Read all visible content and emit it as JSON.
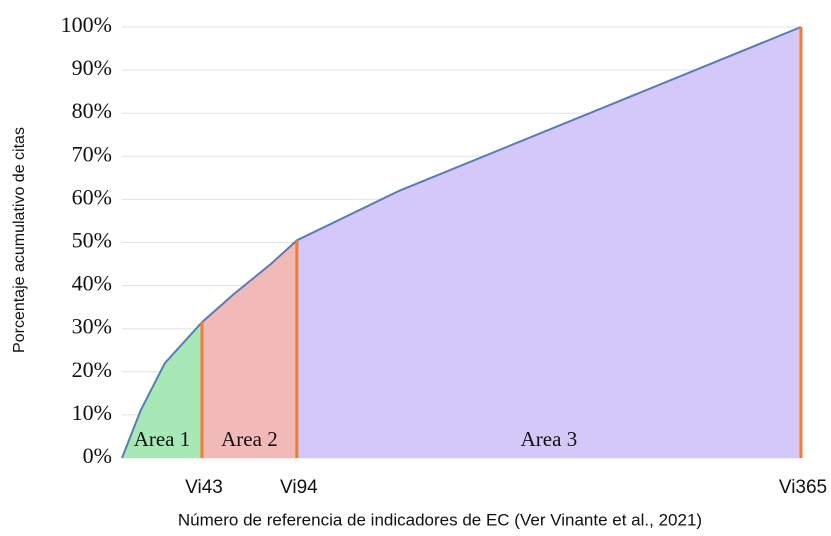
{
  "chart_data": {
    "type": "area",
    "x_label": "Número de referencia de indicadores de EC (Ver Vinante et al., 2021)",
    "y_label": "Porcentaje acumulativo de citas",
    "x": [
      0,
      10,
      23,
      43,
      60,
      80,
      94,
      149,
      257,
      365
    ],
    "series": [
      {
        "color": "#5b7bb8",
        "values": [
          0,
          11,
          22,
          31.5,
          38,
          45,
          50.5,
          62,
          81,
          100
        ]
      }
    ],
    "areas": [
      {
        "label": "Area 1",
        "x0": 0,
        "x1": 43,
        "color": "#a6e8b6"
      },
      {
        "label": "Area 2",
        "x0": 43,
        "x1": 94,
        "color": "#f2b9b9"
      },
      {
        "label": "Area 3",
        "x0": 94,
        "x1": 365,
        "color": "#d3c8f8"
      }
    ],
    "boundary_color": "#ef7d32",
    "xlim": [
      0,
      365
    ],
    "xticks": [
      {
        "value": 43,
        "label": "Vi43"
      },
      {
        "value": 94,
        "label": "Vi94"
      },
      {
        "value": 365,
        "label": "Vi365"
      }
    ],
    "ylim": [
      0,
      100
    ],
    "yticks": [
      {
        "value": 0,
        "label": "0%"
      },
      {
        "value": 10,
        "label": "10%"
      },
      {
        "value": 20,
        "label": "20%"
      },
      {
        "value": 30,
        "label": "30%"
      },
      {
        "value": 40,
        "label": "40%"
      },
      {
        "value": 50,
        "label": "50%"
      },
      {
        "value": 60,
        "label": "60%"
      },
      {
        "value": 70,
        "label": "70%"
      },
      {
        "value": 80,
        "label": "80%"
      },
      {
        "value": 90,
        "label": "90%"
      },
      {
        "value": 100,
        "label": "100%"
      }
    ],
    "grid": true
  }
}
